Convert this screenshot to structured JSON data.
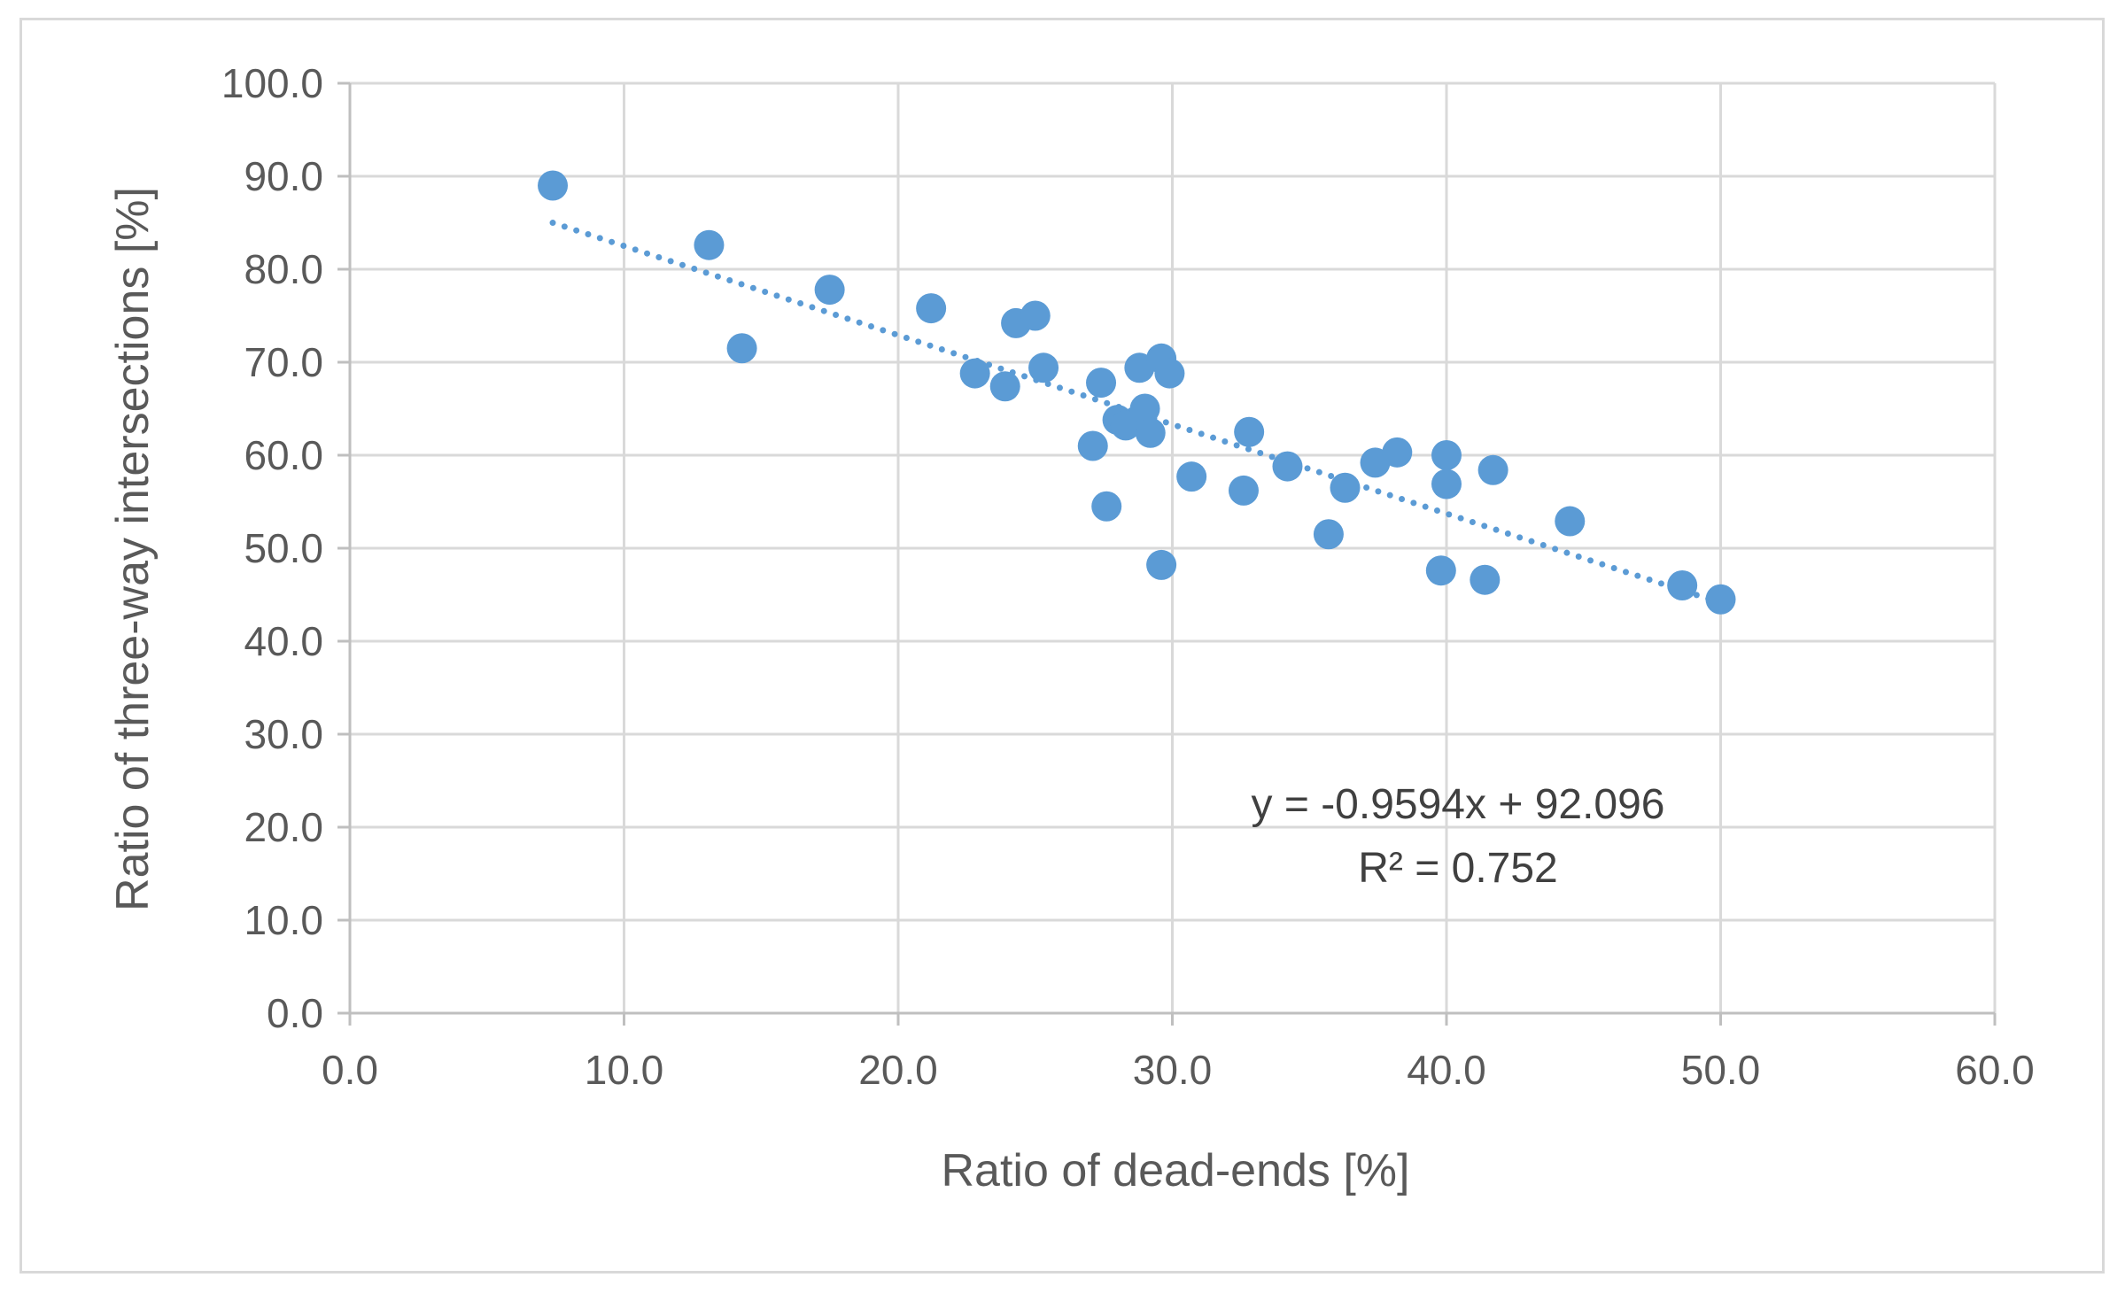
{
  "chart_data": {
    "type": "scatter",
    "title": "",
    "xlabel": "Ratio of dead-ends [%]",
    "ylabel": "Ratio of  three-way intersections [%]",
    "xlim": [
      0,
      60
    ],
    "ylim": [
      0,
      100
    ],
    "x_ticks": [
      0,
      10,
      20,
      30,
      40,
      50,
      60
    ],
    "y_ticks": [
      0,
      10,
      20,
      30,
      40,
      50,
      60,
      70,
      80,
      90,
      100
    ],
    "x_tick_labels": [
      "0.0",
      "10.0",
      "20.0",
      "30.0",
      "40.0",
      "50.0",
      "60.0"
    ],
    "y_tick_labels": [
      "0.0",
      "10.0",
      "20.0",
      "30.0",
      "40.0",
      "50.0",
      "60.0",
      "70.0",
      "80.0",
      "90.0",
      "100.0"
    ],
    "grid": true,
    "legend": "none",
    "series": [
      {
        "name": "Ratio of three-way intersections",
        "color": "#5b9bd5",
        "points": [
          {
            "x": 7.4,
            "y": 89.0
          },
          {
            "x": 13.1,
            "y": 82.6
          },
          {
            "x": 14.3,
            "y": 71.5
          },
          {
            "x": 17.5,
            "y": 77.8
          },
          {
            "x": 21.2,
            "y": 75.8
          },
          {
            "x": 22.8,
            "y": 68.8
          },
          {
            "x": 23.9,
            "y": 67.4
          },
          {
            "x": 24.3,
            "y": 74.2
          },
          {
            "x": 25.0,
            "y": 75.0
          },
          {
            "x": 25.3,
            "y": 69.4
          },
          {
            "x": 27.1,
            "y": 61.0
          },
          {
            "x": 27.4,
            "y": 67.8
          },
          {
            "x": 27.6,
            "y": 54.5
          },
          {
            "x": 28.0,
            "y": 63.8
          },
          {
            "x": 28.3,
            "y": 63.2
          },
          {
            "x": 28.8,
            "y": 69.4
          },
          {
            "x": 29.0,
            "y": 65.0
          },
          {
            "x": 29.2,
            "y": 62.4
          },
          {
            "x": 29.6,
            "y": 70.4
          },
          {
            "x": 29.9,
            "y": 68.8
          },
          {
            "x": 29.6,
            "y": 48.2
          },
          {
            "x": 30.7,
            "y": 57.7
          },
          {
            "x": 32.6,
            "y": 56.2
          },
          {
            "x": 32.8,
            "y": 62.5
          },
          {
            "x": 34.2,
            "y": 58.8
          },
          {
            "x": 35.7,
            "y": 51.5
          },
          {
            "x": 36.3,
            "y": 56.5
          },
          {
            "x": 37.4,
            "y": 59.2
          },
          {
            "x": 38.2,
            "y": 60.3
          },
          {
            "x": 39.8,
            "y": 47.6
          },
          {
            "x": 40.0,
            "y": 60.0
          },
          {
            "x": 40.0,
            "y": 56.9
          },
          {
            "x": 41.4,
            "y": 46.6
          },
          {
            "x": 41.7,
            "y": 58.4
          },
          {
            "x": 44.5,
            "y": 52.9
          },
          {
            "x": 48.6,
            "y": 46.0
          },
          {
            "x": 50.0,
            "y": 44.5
          }
        ]
      }
    ],
    "trendline": {
      "type": "linear",
      "slope": -0.9594,
      "intercept": 92.096,
      "x_range": [
        7.4,
        50.0
      ],
      "style": "dotted",
      "color": "#5b9bd5",
      "equation_label": "y = -0.9594x + 92.096",
      "r2_label": "R² = 0.752"
    }
  }
}
